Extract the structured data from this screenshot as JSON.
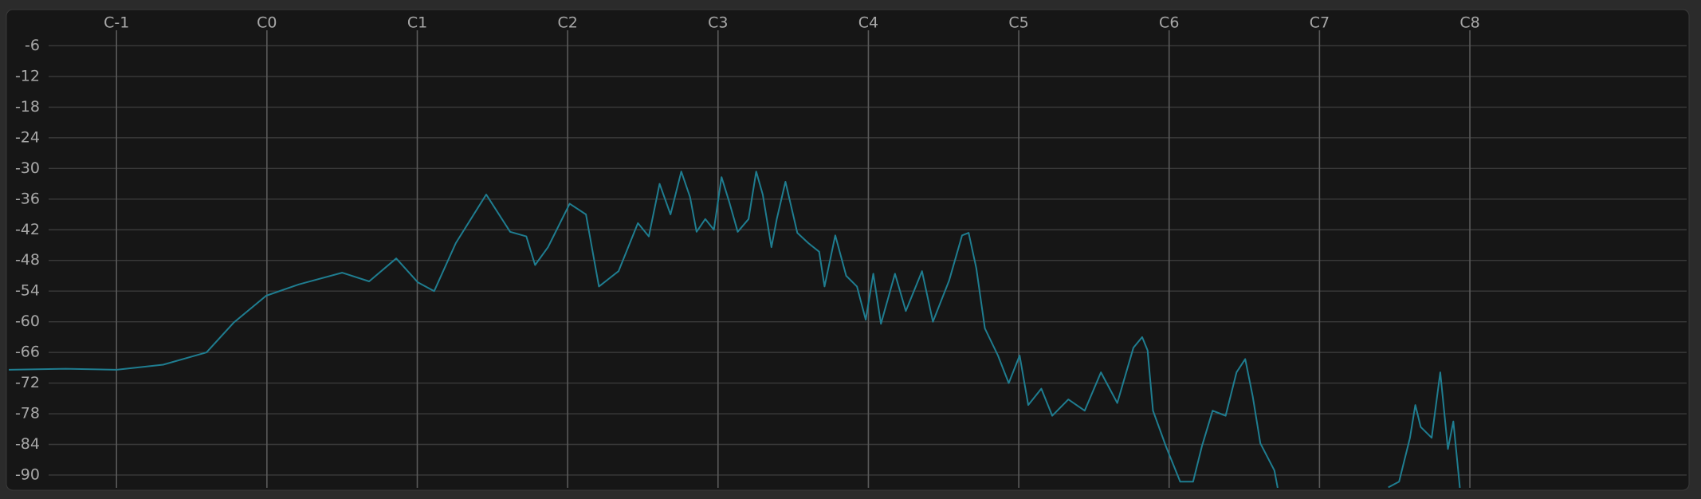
{
  "chart_data": {
    "type": "line",
    "x": [
      -8.6,
      -4.07,
      0,
      3.72,
      7.18,
      9.34,
      11.94,
      14.54,
      18.0,
      20.16,
      22.32,
      24.05,
      25.35,
      27.08,
      29.5,
      31.41,
      32.7,
      33.4,
      34.43,
      36.16,
      37.46,
      38.5,
      40.06,
      41.61,
      42.48,
      43.34,
      44.21,
      45.07,
      45.77,
      46.29,
      46.98,
      47.67,
      48.28,
      48.88,
      49.57,
      50.44,
      51.05,
      51.57,
      52.26,
      52.69,
      53.38,
      54.33,
      55.2,
      56.07,
      56.5,
      57.36,
      58.23,
      59.09,
      59.79,
      60.39,
      61.0,
      62.12,
      62.99,
      64.28,
      65.15,
      66.45,
      67.48,
      68.0,
      68.61,
      69.3,
      70.34,
      71.2,
      72.07,
      72.76,
      73.8,
      74.67,
      75.96,
      77.26,
      78.56,
      79.86,
      81.15,
      81.85,
      82.28,
      82.71,
      83.75,
      84.88,
      85.91,
      86.61,
      87.47,
      88.51,
      89.38,
      90.07,
      90.67,
      91.28,
      92.4,
      92.66,
      97,
      101.49,
      102.35,
      103.22,
      103.65,
      104.08,
      104.95,
      105.64,
      106.25,
      106.68,
      107.2
    ],
    "values": [
      -69.4,
      -69.2,
      -69.4,
      -68.4,
      -66,
      -60.2,
      -54.9,
      -52.7,
      -50.4,
      -52.1,
      -47.6,
      -52.3,
      -54,
      -44.6,
      -35.1,
      -42.4,
      -43.3,
      -48.9,
      -45.4,
      -36.9,
      -39,
      -53.1,
      -50.1,
      -40.7,
      -43.3,
      -33,
      -39,
      -30.6,
      -35.6,
      -42.4,
      -39.9,
      -42,
      -31.7,
      -36.4,
      -42.4,
      -39.9,
      -30.6,
      -35.1,
      -45.4,
      -39.9,
      -32.6,
      -42.6,
      -44.6,
      -46.3,
      -53.1,
      -43.1,
      -51,
      -53.1,
      -59.6,
      -50.6,
      -60.4,
      -50.6,
      -57.9,
      -50.1,
      -60,
      -51.9,
      -43.1,
      -42.6,
      -49.5,
      -61.3,
      -66.6,
      -72,
      -66.6,
      -76.3,
      -73.1,
      -78.4,
      -75.2,
      -77.4,
      -69.9,
      -75.9,
      -65.1,
      -63,
      -65.6,
      -77.4,
      -84.4,
      -91.3,
      -91.3,
      -84.4,
      -77.4,
      -78.4,
      -69.9,
      -67.3,
      -74.6,
      -83.8,
      -89.1,
      -92.5,
      null,
      -92.4,
      -91.3,
      -82.7,
      -76.3,
      -80.6,
      -82.7,
      -69.9,
      -84.9,
      -79.5,
      -92.5
    ],
    "color": "#1f7d90",
    "xlim": [
      -8.6,
      125.3
    ],
    "xticks": [
      {
        "value": 0,
        "label": "C-1"
      },
      {
        "value": 12,
        "label": "C0"
      },
      {
        "value": 24,
        "label": "C1"
      },
      {
        "value": 36,
        "label": "C2"
      },
      {
        "value": 48,
        "label": "C3"
      },
      {
        "value": 60,
        "label": "C4"
      },
      {
        "value": 72,
        "label": "C5"
      },
      {
        "value": 84,
        "label": "C6"
      },
      {
        "value": 96,
        "label": "C7"
      },
      {
        "value": 108,
        "label": "C8"
      }
    ],
    "ylim": [
      -92.5,
      0
    ],
    "yticks": [
      -6,
      -12,
      -18,
      -24,
      -30,
      -36,
      -42,
      -48,
      -54,
      -60,
      -66,
      -72,
      -78,
      -84,
      -90
    ],
    "grid": true
  }
}
